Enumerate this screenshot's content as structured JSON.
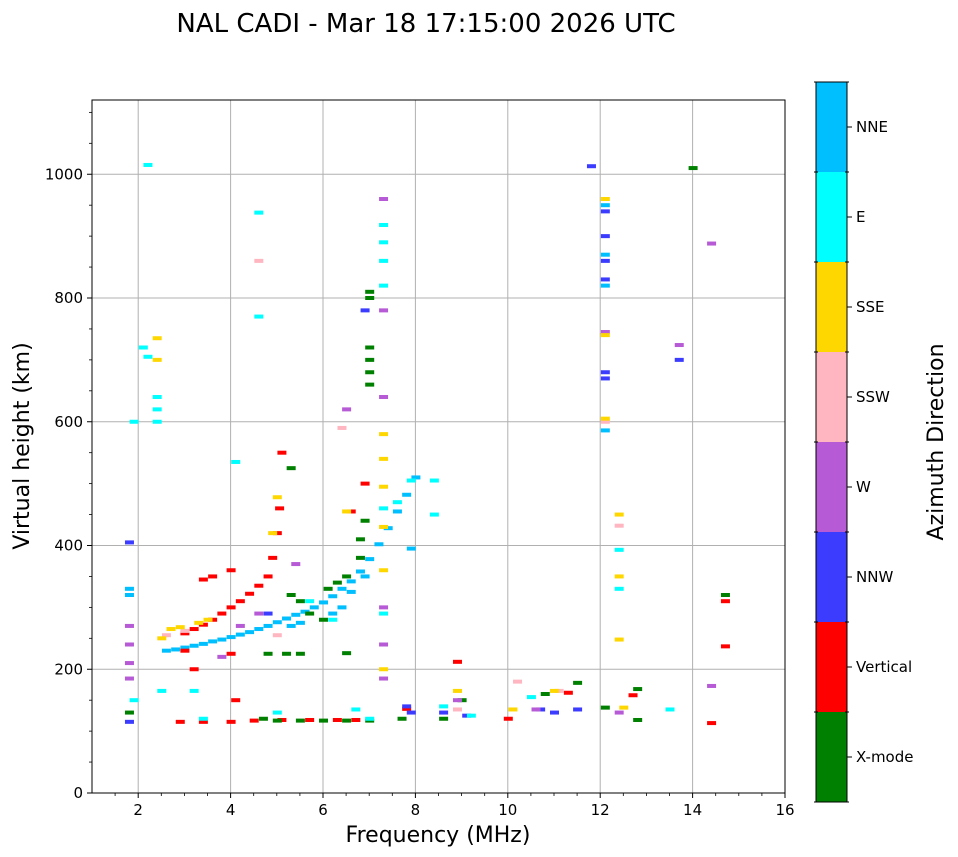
{
  "chart_data": {
    "type": "scatter",
    "title": "NAL CADI - Mar 18 17:15:00 2026 UTC",
    "xlabel": "Frequency (MHz)",
    "ylabel": "Virtual height (km)",
    "xlim": [
      1,
      16
    ],
    "ylim": [
      0,
      1120
    ],
    "xticks": [
      2,
      4,
      6,
      8,
      10,
      12,
      14,
      16
    ],
    "yticks": [
      0,
      200,
      400,
      600,
      800,
      1000
    ],
    "grid": true,
    "colorbar": {
      "label": "Azimuth Direction",
      "categories": [
        "X-mode",
        "Vertical",
        "NNW",
        "W",
        "SSW",
        "SSE",
        "E",
        "NNE"
      ],
      "colors": [
        "#008000",
        "#ff0000",
        "#3c3cff",
        "#b65ad6",
        "#ffb6c1",
        "#ffd700",
        "#00ffff",
        "#00bfff"
      ]
    },
    "traces": [
      {
        "direction": "NNE",
        "points": [
          [
            2.6,
            230
          ],
          [
            2.8,
            232
          ],
          [
            3.0,
            235
          ],
          [
            3.2,
            238
          ],
          [
            3.4,
            241
          ],
          [
            3.6,
            245
          ],
          [
            3.8,
            248
          ],
          [
            4.0,
            252
          ],
          [
            4.2,
            256
          ],
          [
            4.4,
            260
          ],
          [
            4.6,
            265
          ],
          [
            4.8,
            270
          ],
          [
            5.0,
            276
          ],
          [
            5.2,
            282
          ],
          [
            5.4,
            288
          ],
          [
            5.6,
            293
          ],
          [
            5.8,
            300
          ],
          [
            6.0,
            308
          ],
          [
            6.2,
            318
          ],
          [
            6.4,
            330
          ],
          [
            6.6,
            342
          ],
          [
            6.8,
            358
          ],
          [
            7.0,
            378
          ],
          [
            7.2,
            402
          ],
          [
            7.4,
            428
          ],
          [
            7.6,
            455
          ],
          [
            7.8,
            482
          ],
          [
            8.0,
            510
          ],
          [
            1.8,
            330
          ],
          [
            1.8,
            320
          ],
          [
            12.1,
            586
          ],
          [
            12.1,
            820
          ],
          [
            12.1,
            870
          ],
          [
            12.1,
            950
          ],
          [
            7.9,
            395
          ],
          [
            6.2,
            290
          ],
          [
            5.5,
            275
          ],
          [
            5.3,
            270
          ],
          [
            6.4,
            300
          ],
          [
            6.6,
            325
          ],
          [
            6.9,
            350
          ]
        ]
      },
      {
        "direction": "Vertical",
        "points": [
          [
            3.0,
            258
          ],
          [
            3.2,
            265
          ],
          [
            3.4,
            272
          ],
          [
            3.6,
            280
          ],
          [
            3.8,
            290
          ],
          [
            4.0,
            300
          ],
          [
            4.2,
            310
          ],
          [
            4.4,
            322
          ],
          [
            4.6,
            335
          ],
          [
            4.8,
            350
          ],
          [
            4.9,
            380
          ],
          [
            5.0,
            420
          ],
          [
            5.05,
            460
          ],
          [
            5.1,
            550
          ],
          [
            4.0,
            360
          ],
          [
            3.6,
            350
          ],
          [
            3.4,
            345
          ],
          [
            3.0,
            230
          ],
          [
            4.0,
            225
          ],
          [
            2.9,
            115
          ],
          [
            3.4,
            115
          ],
          [
            4.0,
            115
          ],
          [
            4.5,
            117
          ],
          [
            5.1,
            118
          ],
          [
            5.7,
            118
          ],
          [
            6.3,
            118
          ],
          [
            6.7,
            118
          ],
          [
            7.8,
            136
          ],
          [
            8.9,
            212
          ],
          [
            10.0,
            120
          ],
          [
            11.3,
            162
          ],
          [
            12.7,
            158
          ],
          [
            14.7,
            237
          ],
          [
            14.7,
            310
          ],
          [
            14.4,
            113
          ],
          [
            4.1,
            150
          ],
          [
            3.2,
            200
          ],
          [
            6.6,
            455
          ],
          [
            6.9,
            500
          ]
        ]
      },
      {
        "direction": "X-mode",
        "points": [
          [
            5.2,
            225
          ],
          [
            5.5,
            225
          ],
          [
            6.5,
            226
          ],
          [
            7.0,
            660
          ],
          [
            7.0,
            680
          ],
          [
            7.0,
            700
          ],
          [
            7.0,
            720
          ],
          [
            7.0,
            800
          ],
          [
            7.0,
            810
          ],
          [
            6.9,
            440
          ],
          [
            6.8,
            410
          ],
          [
            6.8,
            380
          ],
          [
            6.5,
            350
          ],
          [
            6.3,
            340
          ],
          [
            6.1,
            330
          ],
          [
            5.3,
            320
          ],
          [
            5.5,
            310
          ],
          [
            5.7,
            290
          ],
          [
            6.0,
            280
          ],
          [
            4.8,
            225
          ],
          [
            5.0,
            117
          ],
          [
            5.5,
            117
          ],
          [
            6.0,
            117
          ],
          [
            6.5,
            117
          ],
          [
            7.0,
            117
          ],
          [
            7.7,
            120
          ],
          [
            8.6,
            120
          ],
          [
            9.0,
            150
          ],
          [
            10.8,
            160
          ],
          [
            11.5,
            178
          ],
          [
            12.8,
            168
          ],
          [
            12.8,
            118
          ],
          [
            12.1,
            138
          ],
          [
            14.0,
            1010
          ],
          [
            14.7,
            320
          ],
          [
            4.7,
            120
          ],
          [
            1.8,
            130
          ],
          [
            5.3,
            525
          ]
        ]
      },
      {
        "direction": "NNW",
        "points": [
          [
            1.8,
            405
          ],
          [
            1.8,
            115
          ],
          [
            7.9,
            130
          ],
          [
            8.6,
            130
          ],
          [
            9.1,
            125
          ],
          [
            10.7,
            135
          ],
          [
            11.0,
            130
          ],
          [
            11.5,
            135
          ],
          [
            12.1,
            830
          ],
          [
            12.1,
            860
          ],
          [
            12.1,
            900
          ],
          [
            12.1,
            940
          ],
          [
            12.1,
            670
          ],
          [
            12.1,
            680
          ],
          [
            13.7,
            700
          ],
          [
            11.8,
            1013
          ],
          [
            7.8,
            140
          ],
          [
            6.9,
            780
          ],
          [
            4.8,
            290
          ]
        ]
      },
      {
        "direction": "W",
        "points": [
          [
            1.8,
            270
          ],
          [
            1.8,
            240
          ],
          [
            1.8,
            210
          ],
          [
            1.8,
            185
          ],
          [
            3.8,
            220
          ],
          [
            4.2,
            270
          ],
          [
            4.6,
            290
          ],
          [
            5.4,
            370
          ],
          [
            6.5,
            620
          ],
          [
            7.3,
            960
          ],
          [
            7.3,
            780
          ],
          [
            7.3,
            640
          ],
          [
            7.3,
            300
          ],
          [
            7.3,
            240
          ],
          [
            7.3,
            185
          ],
          [
            12.1,
            745
          ],
          [
            14.4,
            888
          ],
          [
            13.7,
            724
          ],
          [
            14.4,
            173
          ],
          [
            8.9,
            150
          ],
          [
            12.4,
            130
          ],
          [
            10.6,
            135
          ]
        ]
      },
      {
        "direction": "SSW",
        "points": [
          [
            2.6,
            255
          ],
          [
            4.6,
            860
          ],
          [
            6.4,
            590
          ],
          [
            12.4,
            432
          ],
          [
            10.2,
            180
          ],
          [
            11.1,
            165
          ],
          [
            8.9,
            135
          ],
          [
            5.0,
            255
          ],
          [
            3.0,
            262
          ],
          [
            12.1,
            600
          ]
        ]
      },
      {
        "direction": "SSE",
        "points": [
          [
            2.4,
            700
          ],
          [
            2.4,
            735
          ],
          [
            2.5,
            250
          ],
          [
            2.7,
            265
          ],
          [
            2.9,
            268
          ],
          [
            3.3,
            275
          ],
          [
            3.5,
            280
          ],
          [
            4.9,
            420
          ],
          [
            5.0,
            478
          ],
          [
            6.5,
            455
          ],
          [
            7.3,
            580
          ],
          [
            7.3,
            540
          ],
          [
            7.3,
            495
          ],
          [
            7.3,
            430
          ],
          [
            7.3,
            360
          ],
          [
            7.3,
            200
          ],
          [
            12.1,
            960
          ],
          [
            12.1,
            740
          ],
          [
            12.4,
            450
          ],
          [
            12.4,
            350
          ],
          [
            12.4,
            248
          ],
          [
            8.9,
            165
          ],
          [
            10.1,
            135
          ],
          [
            11.0,
            165
          ],
          [
            12.5,
            138
          ],
          [
            12.1,
            605
          ]
        ]
      },
      {
        "direction": "E",
        "points": [
          [
            2.4,
            640
          ],
          [
            2.4,
            620
          ],
          [
            2.4,
            600
          ],
          [
            1.9,
            600
          ],
          [
            4.1,
            535
          ],
          [
            4.6,
            938
          ],
          [
            4.6,
            770
          ],
          [
            7.3,
            918
          ],
          [
            7.3,
            890
          ],
          [
            7.3,
            860
          ],
          [
            7.3,
            820
          ],
          [
            7.3,
            460
          ],
          [
            7.3,
            290
          ],
          [
            7.9,
            505
          ],
          [
            8.4,
            505
          ],
          [
            8.4,
            450
          ],
          [
            7.6,
            470
          ],
          [
            5.7,
            310
          ],
          [
            6.2,
            280
          ],
          [
            2.2,
            1015
          ],
          [
            2.1,
            720
          ],
          [
            2.2,
            705
          ],
          [
            12.4,
            393
          ],
          [
            12.4,
            330
          ],
          [
            13.5,
            135
          ],
          [
            9.2,
            125
          ],
          [
            10.5,
            155
          ],
          [
            6.7,
            135
          ],
          [
            5.0,
            130
          ],
          [
            3.4,
            120
          ],
          [
            1.9,
            150
          ],
          [
            2.5,
            165
          ],
          [
            3.2,
            165
          ],
          [
            7.0,
            120
          ],
          [
            8.6,
            140
          ]
        ]
      }
    ]
  }
}
